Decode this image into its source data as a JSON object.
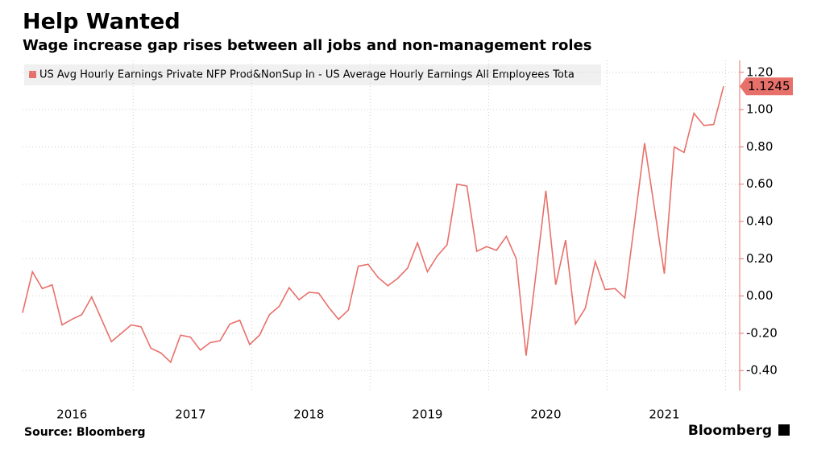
{
  "chart_data": {
    "type": "line",
    "title": "Help Wanted",
    "subtitle": "Wage increase gap rises between all jobs and non-management roles",
    "source": "Source: Bloomberg",
    "brand": "Bloomberg",
    "categories": [
      null,
      null,
      null,
      null,
      null,
      "2016",
      null,
      null,
      null,
      null,
      null,
      null,
      null,
      null,
      null,
      null,
      null,
      "2017",
      null,
      null,
      null,
      null,
      null,
      null,
      null,
      null,
      null,
      null,
      null,
      "2018",
      null,
      null,
      null,
      null,
      null,
      null,
      null,
      null,
      null,
      null,
      null,
      "2019",
      null,
      null,
      null,
      null,
      null,
      null,
      null,
      null,
      null,
      null,
      null,
      "2020",
      null,
      null,
      null,
      null,
      null,
      null,
      null,
      null,
      null,
      null,
      null,
      "2021",
      null,
      null,
      null,
      null,
      null,
      null
    ],
    "series": [
      {
        "name": "US Avg Hourly Earnings Private NFP Prod&NonSup In - US Average Hourly Earnings All Employees Tota",
        "color": "#e8706a",
        "values": [
          -0.09,
          0.13,
          0.04,
          0.06,
          -0.155,
          -0.125,
          -0.1,
          -0.005,
          -0.125,
          -0.245,
          -0.2,
          -0.155,
          -0.165,
          -0.28,
          -0.305,
          -0.355,
          -0.21,
          -0.22,
          -0.29,
          -0.25,
          -0.24,
          -0.15,
          -0.13,
          -0.26,
          -0.21,
          -0.1,
          -0.055,
          0.045,
          -0.02,
          0.02,
          0.015,
          -0.06,
          -0.125,
          -0.075,
          0.16,
          0.17,
          0.1,
          0.055,
          0.095,
          0.15,
          0.285,
          0.13,
          0.215,
          0.275,
          0.6,
          0.59,
          0.24,
          0.265,
          0.245,
          0.32,
          0.2,
          -0.32,
          0.12,
          0.565,
          0.06,
          0.3,
          -0.15,
          -0.065,
          0.185,
          0.035,
          0.04,
          -0.01,
          0.4,
          0.82,
          0.47,
          0.12,
          0.8,
          0.77,
          0.98,
          0.915,
          0.92,
          1.1245
        ]
      }
    ],
    "ylim": [
      -0.52,
      1.32
    ],
    "yticks": [
      {
        "value": 1.2,
        "label": "1.20"
      },
      {
        "value": 1.0,
        "label": "1.00"
      },
      {
        "value": 0.8,
        "label": "0.80"
      },
      {
        "value": 0.6,
        "label": "0.60"
      },
      {
        "value": 0.4,
        "label": "0.40"
      },
      {
        "value": 0.2,
        "label": "0.20"
      },
      {
        "value": 0,
        "label": "0.00"
      },
      {
        "value": -0.2,
        "label": "-0.20"
      },
      {
        "value": -0.4,
        "label": "-0.40"
      }
    ],
    "grid": true
  }
}
